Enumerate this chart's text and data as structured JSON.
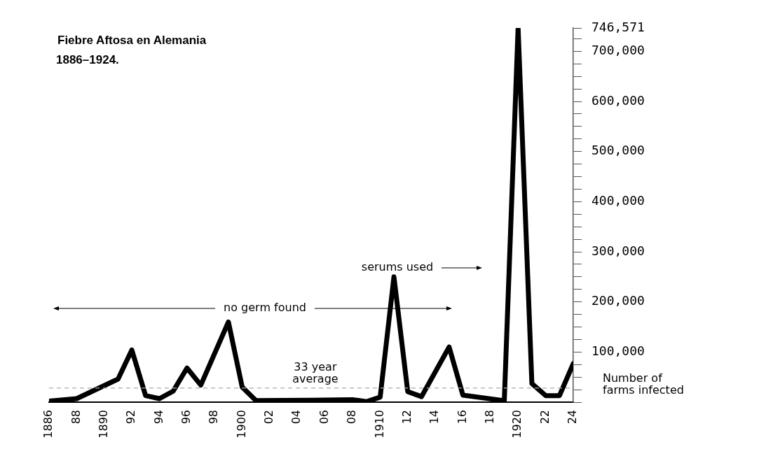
{
  "chart_data": {
    "type": "line",
    "title": "Fiebre Aftosa en Alemania",
    "subtitle": "1886–1924.",
    "ylabel": "Number of farms infected",
    "x": [
      1886,
      1888,
      1891,
      1892,
      1893,
      1894,
      1895,
      1896,
      1897,
      1899,
      1900,
      1901,
      1905,
      1908,
      1909,
      1910,
      1911,
      1912,
      1913,
      1915,
      1916,
      1919,
      1920,
      1921,
      1922,
      1923,
      1924
    ],
    "series": [
      {
        "color": "#000000",
        "values": [
          2000,
          7000,
          46000,
          104000,
          13000,
          7000,
          22000,
          68000,
          34000,
          160000,
          30000,
          3000,
          4000,
          5000,
          1000,
          10000,
          250000,
          21000,
          11000,
          110000,
          14000,
          3000,
          746571,
          37000,
          13000,
          13000,
          77000
        ]
      }
    ],
    "xlim": [
      1886,
      1924
    ],
    "xticks": [
      1886,
      {
        "value": 1888,
        "label": "88"
      },
      1890,
      {
        "value": 1892,
        "label": "92"
      },
      {
        "value": 1894,
        "label": "94"
      },
      {
        "value": 1896,
        "label": "96"
      },
      {
        "value": 1898,
        "label": "98"
      },
      1900,
      {
        "value": 1902,
        "label": "02"
      },
      {
        "value": 1904,
        "label": "04"
      },
      {
        "value": 1906,
        "label": "06"
      },
      {
        "value": 1908,
        "label": "08"
      },
      1910,
      {
        "value": 1912,
        "label": "12"
      },
      {
        "value": 1914,
        "label": "14"
      },
      {
        "value": 1916,
        "label": "16"
      },
      {
        "value": 1918,
        "label": "18"
      },
      1920,
      {
        "value": 1922,
        "label": "22"
      },
      {
        "value": 1924,
        "label": "24"
      }
    ],
    "ylim": [
      0,
      746571
    ],
    "yticks": [
      {
        "value": 0,
        "label": null
      },
      {
        "value": 25000,
        "label": null
      },
      {
        "value": 50000,
        "label": null
      },
      {
        "value": 75000,
        "label": null
      },
      {
        "value": 100000,
        "label": "100,000"
      },
      {
        "value": 125000,
        "label": null
      },
      {
        "value": 150000,
        "label": null
      },
      {
        "value": 175000,
        "label": null
      },
      {
        "value": 200000,
        "label": "200,000"
      },
      {
        "value": 225000,
        "label": null
      },
      {
        "value": 250000,
        "label": null
      },
      {
        "value": 275000,
        "label": null
      },
      {
        "value": 300000,
        "label": "300,000"
      },
      {
        "value": 325000,
        "label": null
      },
      {
        "value": 350000,
        "label": null
      },
      {
        "value": 375000,
        "label": null
      },
      {
        "value": 400000,
        "label": "400,000"
      },
      {
        "value": 425000,
        "label": null
      },
      {
        "value": 450000,
        "label": null
      },
      {
        "value": 475000,
        "label": null
      },
      {
        "value": 500000,
        "label": "500,000"
      },
      {
        "value": 525000,
        "label": null
      },
      {
        "value": 550000,
        "label": null
      },
      {
        "value": 575000,
        "label": null
      },
      {
        "value": 600000,
        "label": "600,000"
      },
      {
        "value": 625000,
        "label": null
      },
      {
        "value": 650000,
        "label": null
      },
      {
        "value": 675000,
        "label": null
      },
      {
        "value": 700000,
        "label": "700,000"
      },
      {
        "value": 725000,
        "label": null
      },
      {
        "value": 746571,
        "label": "746,571"
      }
    ],
    "ref_lines": [
      {
        "axis": "y",
        "value": 28000,
        "label": "33 year average",
        "color": "#aaaaaa",
        "line_style": "dashed"
      }
    ],
    "annotations": [
      "no germ found",
      "serums used"
    ],
    "grid": false,
    "legend": false,
    "marker": "none",
    "line_style": "solid"
  }
}
